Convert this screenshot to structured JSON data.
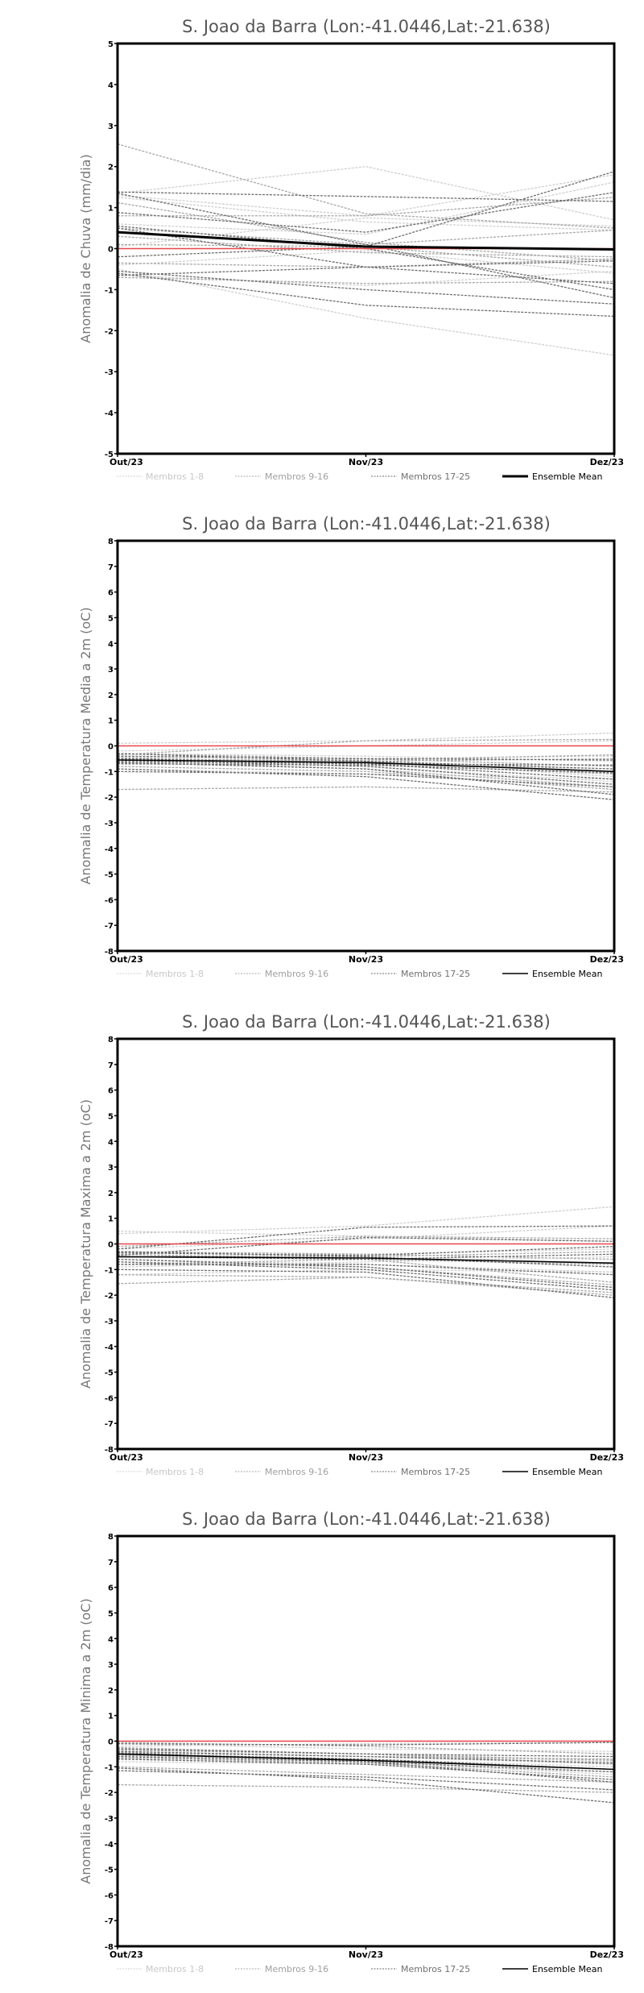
{
  "colors": {
    "members_1_8": "#cfcfcf",
    "members_9_16": "#a8a8a8",
    "members_17_25": "#6e6e6e",
    "ensemble_mean": "#000000",
    "zero_line": "#e8474a"
  },
  "legend": [
    "Membros 1-8",
    "Membros 9-16",
    "Membros 17-25",
    "Ensemble Mean"
  ],
  "chart_data": [
    {
      "type": "line",
      "title": "S. Joao da Barra (Lon:-41.0446,Lat:-21.638)",
      "ylabel": "Anomalia de Chuva (mm/dia)",
      "xlabel": "",
      "categories": [
        "Out/23",
        "Nov/23",
        "Dez/23"
      ],
      "ylim": [
        -5,
        5
      ],
      "yticks": [
        "-5",
        "-4",
        "-3",
        "-2",
        "-1",
        "0",
        "1",
        "2",
        "3",
        "4",
        "5"
      ],
      "members": [
        [
          1.35,
          2.0,
          0.7
        ],
        [
          -0.5,
          -1.7,
          -2.6
        ],
        [
          1.3,
          0.8,
          1.8
        ],
        [
          0.6,
          0.35,
          1.62
        ],
        [
          -0.65,
          -0.9,
          -0.55
        ],
        [
          0.05,
          0.75,
          0.55
        ],
        [
          1.25,
          0.65,
          0.45
        ],
        [
          -0.4,
          -0.05,
          -0.6
        ],
        [
          2.55,
          0.85,
          0.5
        ],
        [
          0.8,
          0.8,
          1.25
        ],
        [
          0.3,
          -0.1,
          -0.2
        ],
        [
          -0.7,
          -0.85,
          -0.8
        ],
        [
          0.5,
          0.1,
          0.45
        ],
        [
          -0.35,
          -0.45,
          -0.25
        ],
        [
          1.12,
          0.15,
          -0.3
        ],
        [
          0.1,
          0.05,
          -0.45
        ],
        [
          1.38,
          1.27,
          1.15
        ],
        [
          0.88,
          0.4,
          1.37
        ],
        [
          -0.2,
          0.05,
          1.88
        ],
        [
          0.55,
          0.0,
          -1.0
        ],
        [
          -0.55,
          -1.0,
          -1.35
        ],
        [
          -0.6,
          -1.38,
          -1.65
        ],
        [
          1.35,
          0.1,
          -1.2
        ],
        [
          0.5,
          -0.45,
          -0.85
        ],
        [
          -0.65,
          -0.45,
          -0.3
        ]
      ],
      "ensemble_mean": [
        0.4,
        0.05,
        -0.02
      ],
      "mean_thick": true
    },
    {
      "type": "line",
      "title": "S. Joao da Barra (Lon:-41.0446,Lat:-21.638)",
      "ylabel": "Anomalia de Temperatura Media a 2m (oC)",
      "xlabel": "",
      "categories": [
        "Out/23",
        "Nov/23",
        "Dez/23"
      ],
      "ylim": [
        -8,
        8
      ],
      "yticks": [
        "-8",
        "-7",
        "-6",
        "-5",
        "-4",
        "-3",
        "-2",
        "-1",
        "0",
        "1",
        "2",
        "3",
        "4",
        "5",
        "6",
        "7",
        "8"
      ],
      "members": [
        [
          0.1,
          0.2,
          0.5
        ],
        [
          -0.3,
          -0.4,
          -0.6
        ],
        [
          -0.5,
          -0.7,
          -0.9
        ],
        [
          -0.7,
          -0.5,
          -0.4
        ],
        [
          -0.4,
          -0.6,
          -1.2
        ],
        [
          -0.6,
          -0.8,
          -1.4
        ],
        [
          -0.2,
          0.0,
          0.2
        ],
        [
          -0.9,
          -1.1,
          -1.3
        ],
        [
          -0.35,
          0.2,
          0.25
        ],
        [
          -0.5,
          -0.6,
          -0.5
        ],
        [
          -0.6,
          -0.9,
          -1.6
        ],
        [
          -0.8,
          -1.0,
          -1.7
        ],
        [
          -0.3,
          -0.5,
          -0.8
        ],
        [
          -0.45,
          -0.7,
          -1.1
        ],
        [
          -1.7,
          -1.6,
          -1.8
        ],
        [
          -0.55,
          -0.55,
          -0.35
        ],
        [
          -0.4,
          -0.5,
          -0.55
        ],
        [
          -0.55,
          -0.8,
          -1.5
        ],
        [
          -0.65,
          -0.9,
          -1.9
        ],
        [
          -0.9,
          -1.2,
          -2.1
        ],
        [
          -1.0,
          -1.1,
          -1.6
        ],
        [
          -0.3,
          -0.6,
          -0.9
        ],
        [
          -0.7,
          -0.75,
          -1.05
        ],
        [
          -0.5,
          -0.7,
          -1.3
        ],
        [
          -0.6,
          -0.7,
          -0.75
        ]
      ],
      "ensemble_mean": [
        -0.55,
        -0.65,
        -1.0
      ],
      "mean_thick": false
    },
    {
      "type": "line",
      "title": "S. Joao da Barra (Lon:-41.0446,Lat:-21.638)",
      "ylabel": "Anomalia de Temperatura Maxima a 2m (oC)",
      "xlabel": "",
      "categories": [
        "Out/23",
        "Nov/23",
        "Dez/23"
      ],
      "ylim": [
        -8,
        8
      ],
      "yticks": [
        "-8",
        "-7",
        "-6",
        "-5",
        "-4",
        "-3",
        "-2",
        "-1",
        "0",
        "1",
        "2",
        "3",
        "4",
        "5",
        "6",
        "7",
        "8"
      ],
      "members": [
        [
          0.5,
          0.3,
          0.1
        ],
        [
          0.4,
          0.7,
          1.45
        ],
        [
          -0.3,
          -0.5,
          -0.9
        ],
        [
          -0.6,
          -0.8,
          -1.1
        ],
        [
          -0.2,
          0.2,
          0.7
        ],
        [
          -0.9,
          -0.7,
          -0.5
        ],
        [
          -0.5,
          -0.4,
          -0.2
        ],
        [
          -1.2,
          -1.0,
          -1.1
        ],
        [
          -0.1,
          0.3,
          0.2
        ],
        [
          -0.4,
          -0.6,
          -1.5
        ],
        [
          -0.7,
          -0.9,
          -1.6
        ],
        [
          -1.2,
          -1.3,
          -1.9
        ],
        [
          -0.3,
          -0.4,
          -0.6
        ],
        [
          -0.5,
          -0.5,
          -0.3
        ],
        [
          -1.55,
          -1.3,
          -2.0
        ],
        [
          -0.8,
          -0.6,
          -0.8
        ],
        [
          -0.2,
          0.65,
          0.7
        ],
        [
          -0.45,
          0.25,
          0.1
        ],
        [
          -0.6,
          -0.9,
          -1.7
        ],
        [
          -0.35,
          -0.45,
          -0.1
        ],
        [
          -0.7,
          -1.0,
          -1.8
        ],
        [
          -1.0,
          -1.1,
          -2.1
        ],
        [
          -0.5,
          -0.6,
          -0.4
        ],
        [
          -0.8,
          -0.8,
          -1.2
        ],
        [
          -0.3,
          -0.5,
          -0.9
        ]
      ],
      "ensemble_mean": [
        -0.5,
        -0.55,
        -0.75
      ],
      "mean_thick": false
    },
    {
      "type": "line",
      "title": "S. Joao da Barra (Lon:-41.0446,Lat:-21.638)",
      "ylabel": "Anomalia de Temperatura Minima a 2m (oC)",
      "xlabel": "",
      "categories": [
        "Out/23",
        "Nov/23",
        "Dez/23"
      ],
      "ylim": [
        -8,
        8
      ],
      "yticks": [
        "-8",
        "-7",
        "-6",
        "-5",
        "-4",
        "-3",
        "-2",
        "-1",
        "0",
        "1",
        "2",
        "3",
        "4",
        "5",
        "6",
        "7",
        "8"
      ],
      "members": [
        [
          -0.1,
          -0.3,
          -0.4
        ],
        [
          -0.3,
          -0.5,
          -0.8
        ],
        [
          -0.5,
          -0.7,
          -1.0
        ],
        [
          -0.8,
          -0.9,
          -1.2
        ],
        [
          -0.4,
          -0.6,
          -0.9
        ],
        [
          -0.2,
          -0.1,
          -0.05
        ],
        [
          -0.6,
          -0.8,
          -1.3
        ],
        [
          -0.7,
          -0.9,
          -1.1
        ],
        [
          -0.05,
          -0.2,
          -0.5
        ],
        [
          -0.35,
          -0.5,
          -0.75
        ],
        [
          -0.55,
          -0.75,
          -1.1
        ],
        [
          -1.0,
          -1.3,
          -1.6
        ],
        [
          -0.45,
          -0.6,
          -0.7
        ],
        [
          -0.65,
          -0.85,
          -1.4
        ],
        [
          -1.7,
          -1.8,
          -2.0
        ],
        [
          -0.25,
          -0.5,
          -0.9
        ],
        [
          -0.1,
          -0.15,
          -0.05
        ],
        [
          -0.3,
          -0.5,
          -0.6
        ],
        [
          -0.5,
          -0.7,
          -1.1
        ],
        [
          -0.7,
          -0.9,
          -1.5
        ],
        [
          -1.05,
          -1.5,
          -2.4
        ],
        [
          -1.15,
          -1.4,
          -1.9
        ],
        [
          -0.4,
          -0.6,
          -0.85
        ],
        [
          -0.6,
          -0.8,
          -1.2
        ],
        [
          -0.45,
          -0.8,
          -1.6
        ]
      ],
      "ensemble_mean": [
        -0.5,
        -0.75,
        -1.1
      ],
      "mean_thick": false
    }
  ]
}
